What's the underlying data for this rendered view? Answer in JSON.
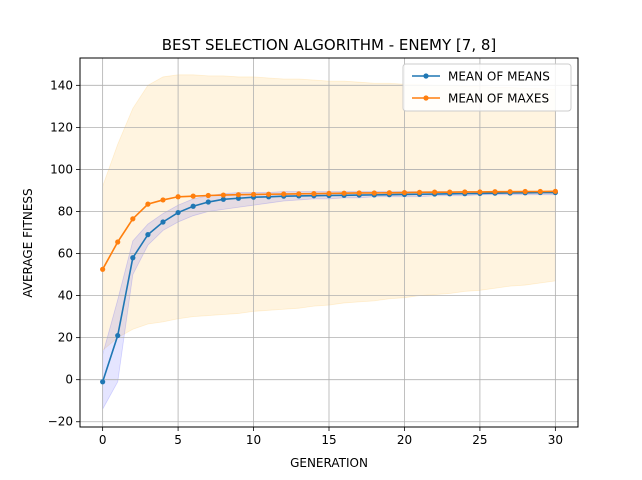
{
  "chart_data": {
    "type": "line",
    "title": "BEST SELECTION ALGORITHM - ENEMY [7, 8]",
    "xlabel": "GENERATION",
    "ylabel": "AVERAGE FITNESS",
    "xlim": [
      -1.5,
      31.5
    ],
    "ylim": [
      -22.5,
      153
    ],
    "xticks": [
      0,
      5,
      10,
      15,
      20,
      25,
      30
    ],
    "yticks": [
      -20,
      0,
      20,
      40,
      60,
      80,
      100,
      120,
      140
    ],
    "grid": true,
    "legend_position": "top-right",
    "x": [
      0,
      1,
      2,
      3,
      4,
      5,
      6,
      7,
      8,
      9,
      10,
      11,
      12,
      13,
      14,
      15,
      16,
      17,
      18,
      19,
      20,
      21,
      22,
      23,
      24,
      25,
      26,
      27,
      28,
      29,
      30
    ],
    "series": [
      {
        "name": "MEAN OF MEANS",
        "color": "#1f77b4",
        "band_color": "#0000ff",
        "values": [
          -1,
          21,
          58,
          69,
          75,
          79.5,
          82.5,
          84.5,
          85.8,
          86.3,
          86.8,
          87,
          87.3,
          87.4,
          87.5,
          87.6,
          87.7,
          87.8,
          87.9,
          88,
          88.1,
          88.2,
          88.3,
          88.4,
          88.5,
          88.6,
          88.7,
          88.8,
          88.9,
          89,
          89
        ],
        "band_low": [
          -14,
          -1,
          50,
          64,
          71,
          75,
          78,
          80,
          81,
          82,
          83,
          84,
          85,
          85.5,
          86,
          86,
          86.5,
          86.5,
          87,
          87,
          87,
          87,
          87.5,
          87.5,
          87.5,
          88,
          88,
          88,
          88,
          88,
          88
        ],
        "band_high": [
          12,
          38,
          66,
          74,
          79,
          83,
          86,
          87.5,
          88.5,
          89,
          89,
          89,
          89.5,
          89.5,
          89.5,
          89.5,
          89.5,
          89.5,
          89.5,
          89.5,
          89.5,
          89.5,
          89.5,
          89.5,
          89.5,
          89.5,
          89.5,
          89.5,
          89.5,
          89.5,
          89.5
        ]
      },
      {
        "name": "MEAN OF MAXES",
        "color": "#ff7f0e",
        "band_color": "#ffa500",
        "values": [
          52.5,
          65.5,
          76.5,
          83.5,
          85.5,
          87,
          87.3,
          87.6,
          87.8,
          88,
          88.1,
          88.2,
          88.3,
          88.4,
          88.5,
          88.6,
          88.7,
          88.8,
          88.8,
          88.9,
          89,
          89.1,
          89.2,
          89.2,
          89.3,
          89.3,
          89.4,
          89.4,
          89.5,
          89.5,
          89.6
        ],
        "band_low": [
          14,
          20,
          24,
          26.5,
          27.5,
          29,
          30,
          30.5,
          31,
          31.5,
          32.5,
          33,
          33.5,
          34,
          35,
          35.5,
          36.5,
          37,
          37.5,
          38.5,
          39,
          40,
          40.5,
          41,
          42,
          42.5,
          43.5,
          44.5,
          45,
          46,
          47
        ],
        "band_high": [
          92,
          112,
          129,
          140,
          144,
          145,
          145,
          144.5,
          144.5,
          144,
          144,
          143.5,
          143,
          143,
          142.5,
          142,
          142,
          141.5,
          141,
          141,
          140.5,
          140.5,
          140,
          140,
          139.5,
          139.5,
          139,
          139,
          138.5,
          138.5,
          138
        ]
      }
    ]
  }
}
